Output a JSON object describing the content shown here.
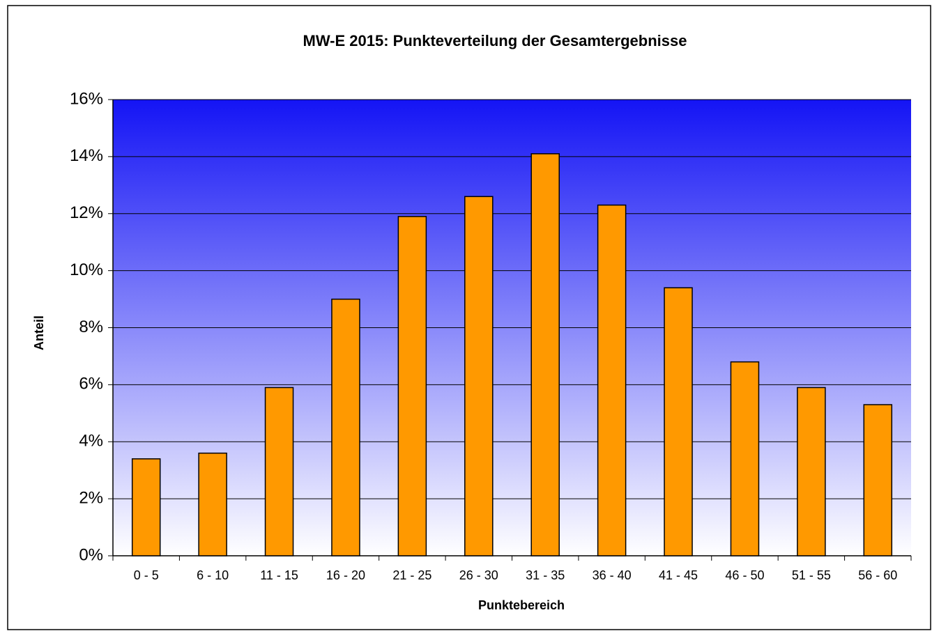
{
  "chart_data": {
    "type": "bar",
    "title": "MW-E  2015: Punkteverteilung der Gesamtergebnisse",
    "x_label": "Punktebereich",
    "y_label": "Anteil",
    "categories": [
      "0 - 5",
      "6 - 10",
      "11 - 15",
      "16 - 20",
      "21 - 25",
      "26 - 30",
      "31 - 35",
      "36 - 40",
      "41 - 45",
      "46 - 50",
      "51 - 55",
      "56 - 60"
    ],
    "values": [
      3.4,
      3.6,
      5.9,
      9.0,
      11.9,
      12.6,
      14.1,
      12.3,
      9.4,
      6.8,
      5.9,
      5.3
    ],
    "color": "#ff9900",
    "plot_gradient": [
      "#1414f5",
      "#ffffff"
    ],
    "ylim": [
      0,
      16
    ],
    "yticks": [
      {
        "value": 0,
        "label": "0%"
      },
      {
        "value": 2,
        "label": "2%"
      },
      {
        "value": 4,
        "label": "4%"
      },
      {
        "value": 6,
        "label": "6%"
      },
      {
        "value": 8,
        "label": "8%"
      },
      {
        "value": 10,
        "label": "10%"
      },
      {
        "value": 12,
        "label": "12%"
      },
      {
        "value": 14,
        "label": "14%"
      },
      {
        "value": 16,
        "label": "16%"
      }
    ],
    "grid": true
  }
}
